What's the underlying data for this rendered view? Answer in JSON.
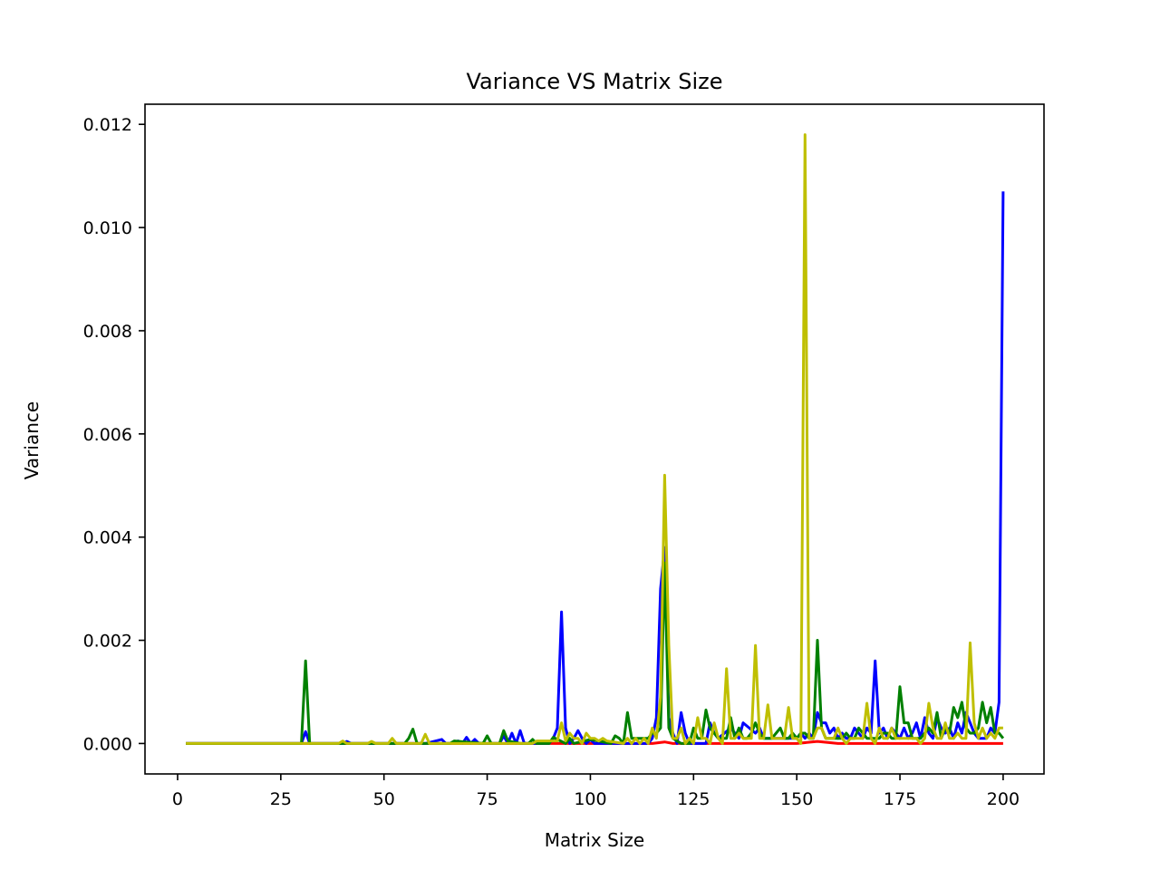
{
  "chart_data": {
    "type": "line",
    "title": "Variance VS Matrix Size",
    "xlabel": "Matrix Size",
    "ylabel": "Variance",
    "xlim": [
      -7.9,
      209.9
    ],
    "ylim": [
      -0.00059,
      0.01239
    ],
    "xticks": [
      0,
      25,
      50,
      75,
      100,
      125,
      150,
      175,
      200
    ],
    "yticks": [
      0.0,
      0.002,
      0.004,
      0.006,
      0.008,
      0.01,
      0.012
    ],
    "ytick_labels": [
      "0.000",
      "0.002",
      "0.004",
      "0.006",
      "0.008",
      "0.010",
      "0.012"
    ],
    "grid": false,
    "legend": "none",
    "series": [
      {
        "color": "#ff0000",
        "x": [
          2,
          50,
          100,
          110,
          115,
          118,
          120,
          130,
          140,
          150,
          155,
          160,
          170,
          180,
          190,
          200
        ],
        "y": [
          0,
          0,
          0,
          0,
          0,
          3e-05,
          0,
          0,
          0,
          0,
          4e-05,
          0,
          0,
          0,
          0,
          0
        ]
      },
      {
        "color": "#0000ff",
        "x": [
          2,
          29,
          30,
          31,
          32,
          33,
          40,
          41,
          42,
          60,
          64,
          65,
          66,
          68,
          69,
          70,
          71,
          72,
          73,
          74,
          78,
          79,
          80,
          81,
          82,
          83,
          84,
          85,
          90,
          91,
          92,
          93,
          94,
          95,
          96,
          97,
          98,
          99,
          100,
          101,
          102,
          110,
          114,
          115,
          116,
          117,
          118,
          119,
          120,
          121,
          122,
          123,
          124,
          128,
          129,
          130,
          131,
          134,
          135,
          136,
          137,
          140,
          141,
          142,
          145,
          150,
          151,
          152,
          153,
          154,
          155,
          156,
          157,
          158,
          159,
          160,
          161,
          162,
          163,
          164,
          165,
          166,
          167,
          168,
          169,
          170,
          171,
          172,
          173,
          174,
          175,
          176,
          177,
          178,
          179,
          180,
          181,
          182,
          183,
          184,
          185,
          186,
          187,
          188,
          189,
          190,
          191,
          192,
          193,
          194,
          195,
          196,
          197,
          198,
          199,
          200
        ],
        "y": [
          0,
          0,
          0,
          0.00023,
          0,
          0,
          0,
          4e-05,
          0,
          0,
          8e-05,
          0,
          0,
          5e-05,
          0,
          0.00012,
          0,
          8e-05,
          0,
          0,
          0,
          0.00015,
          0,
          0.0002,
          0,
          0.00025,
          0,
          0,
          0,
          0.0001,
          0.0003,
          0.00255,
          0.0003,
          0,
          0.0001,
          0.00025,
          0.0001,
          0,
          8e-05,
          0,
          0,
          0,
          0,
          0.0001,
          0.0005,
          0.003,
          0.0038,
          0.0005,
          0.0002,
          0,
          0.0006,
          0.0002,
          0,
          0,
          0.0004,
          0.0002,
          0.0001,
          0.0003,
          0.0002,
          0.0001,
          0.0004,
          0.0002,
          0.0003,
          0.0001,
          0.0001,
          0.0001,
          0.0002,
          0.0001,
          0.0002,
          0.0001,
          0.0006,
          0.0004,
          0.0004,
          0.0002,
          0.0003,
          0.0001,
          0.0002,
          0.0001,
          0.0001,
          0.0003,
          0.0002,
          0.0001,
          0.0003,
          0.0002,
          0.0016,
          0.0002,
          0.0003,
          0.0001,
          0.0003,
          0.0002,
          0.0001,
          0.0003,
          0.0001,
          0.0002,
          0.0004,
          0.0001,
          0.0005,
          0.0002,
          0.0001,
          0.0005,
          0.0003,
          0.0002,
          0.0003,
          0.0001,
          0.0004,
          0.0002,
          0.0006,
          0.0004,
          0.0002,
          0.0001,
          0.0001,
          0.0001,
          0.0003,
          0.0002,
          0.0008,
          0.0107
        ]
      },
      {
        "color": "#008000",
        "x": [
          2,
          29,
          30,
          31,
          32,
          33,
          52,
          55,
          56,
          57,
          58,
          59,
          66,
          67,
          74,
          75,
          76,
          78,
          79,
          80,
          83,
          85,
          86,
          87,
          90,
          91,
          94,
          95,
          96,
          100,
          105,
          106,
          107,
          108,
          109,
          110,
          111,
          112,
          113,
          114,
          115,
          116,
          117,
          118,
          119,
          120,
          122,
          124,
          125,
          126,
          127,
          128,
          129,
          130,
          131,
          132,
          133,
          134,
          135,
          136,
          137,
          138,
          139,
          140,
          141,
          142,
          143,
          144,
          145,
          146,
          147,
          148,
          149,
          150,
          151,
          152,
          153,
          154,
          155,
          156,
          157,
          158,
          159,
          160,
          161,
          162,
          163,
          164,
          165,
          166,
          167,
          168,
          169,
          170,
          171,
          172,
          173,
          174,
          175,
          176,
          177,
          178,
          179,
          180,
          181,
          182,
          183,
          184,
          185,
          186,
          187,
          188,
          189,
          190,
          191,
          192,
          193,
          194,
          195,
          196,
          197,
          198,
          199,
          200
        ],
        "y": [
          0,
          0,
          0,
          0.0016,
          0,
          0,
          0,
          0,
          0.0001,
          0.00028,
          0,
          0,
          0,
          5e-05,
          0,
          0.00015,
          0,
          0,
          0.00025,
          5e-05,
          0,
          0,
          8e-05,
          0,
          0,
          0.00012,
          0,
          0.0001,
          0,
          8e-05,
          0,
          0.00015,
          0.0001,
          0,
          0.0006,
          0.0001,
          0.0001,
          0.0001,
          0.0001,
          0.0001,
          0.0002,
          0.0002,
          0.0003,
          0.0035,
          0.0003,
          0.0001,
          0,
          0,
          0.0003,
          0.0001,
          0.0001,
          0.00065,
          0.0003,
          0.0002,
          0.0001,
          0.0001,
          0.0001,
          0.0005,
          0.0001,
          0.0003,
          0.0001,
          0.0001,
          0.0002,
          0.0004,
          0.0002,
          0.0001,
          0.0001,
          0.0001,
          0.0002,
          0.0003,
          0.0001,
          0.0001,
          0.0002,
          0.0001,
          0.0002,
          0.0002,
          0.0001,
          0.0001,
          0.002,
          0.0003,
          0.0001,
          0.0001,
          0.0001,
          0.0001,
          0.0001,
          0.0002,
          0.0001,
          0.0001,
          0.0003,
          0.0002,
          0.0001,
          0.0001,
          0.0001,
          0.0001,
          0.0002,
          0.0002,
          0.0001,
          0.0001,
          0.0011,
          0.0004,
          0.0004,
          0.0001,
          0.0001,
          0.0001,
          0.0002,
          0.0003,
          0.0002,
          0.0006,
          0.0001,
          0.0003,
          0.0002,
          0.0007,
          0.0005,
          0.0008,
          0.0003,
          0.0002,
          0.0002,
          0.0003,
          0.0008,
          0.0004,
          0.0007,
          0.0002,
          0.0002,
          0.0001
        ]
      },
      {
        "color": "#bfbf00",
        "x": [
          2,
          39,
          40,
          41,
          46,
          47,
          48,
          51,
          52,
          53,
          59,
          60,
          61,
          86,
          87,
          92,
          93,
          94,
          95,
          96,
          97,
          98,
          99,
          100,
          101,
          102,
          103,
          104,
          108,
          109,
          110,
          111,
          112,
          113,
          114,
          115,
          116,
          117,
          118,
          119,
          120,
          121,
          122,
          123,
          124,
          125,
          126,
          127,
          128,
          129,
          130,
          131,
          132,
          133,
          134,
          135,
          136,
          137,
          138,
          139,
          140,
          141,
          142,
          143,
          144,
          145,
          146,
          147,
          148,
          149,
          150,
          151,
          152,
          153,
          154,
          155,
          156,
          157,
          158,
          159,
          160,
          161,
          162,
          163,
          164,
          165,
          166,
          167,
          168,
          169,
          170,
          171,
          172,
          173,
          174,
          175,
          176,
          177,
          178,
          179,
          180,
          181,
          182,
          183,
          184,
          185,
          186,
          187,
          188,
          189,
          190,
          191,
          192,
          193,
          194,
          195,
          196,
          197,
          198,
          199,
          200
        ],
        "y": [
          0,
          0,
          5e-05,
          0,
          0,
          4e-05,
          0,
          0,
          0.0001,
          0,
          0,
          0.00018,
          0,
          0,
          5e-05,
          5e-05,
          0.0004,
          5e-05,
          0.0002,
          0.0001,
          0.0001,
          0,
          0.0002,
          0.0001,
          0.0001,
          5e-05,
          0.0001,
          5e-05,
          0,
          0.0001,
          0,
          0.0001,
          0,
          0.0001,
          0,
          0.0003,
          0.0001,
          0.0009,
          0.0052,
          0.0019,
          0.0001,
          0.0001,
          0.0003,
          0,
          0.0001,
          0,
          0.0005,
          0.0001,
          0.0001,
          0,
          0.0004,
          0.0001,
          0,
          0.00145,
          0.0001,
          0.0001,
          0.0002,
          0.0001,
          0.0001,
          0.0001,
          0.0019,
          0.0001,
          0.0001,
          0.00075,
          0.0001,
          0.0001,
          0.0001,
          0.0001,
          0.0007,
          0.0001,
          0.0001,
          0,
          0.0118,
          0.0001,
          0.0001,
          0.0003,
          0.0003,
          0.0001,
          0.0001,
          0.0001,
          0.0003,
          0.0001,
          0,
          0.0001,
          0.0001,
          0.0001,
          0.0001,
          0.00078,
          0.0001,
          0,
          0.0003,
          0.0001,
          0.0001,
          0.0003,
          0.0001,
          0.0001,
          0.0001,
          0.0001,
          0.0001,
          0.0001,
          0,
          0.0001,
          0.00078,
          0.0003,
          0.0001,
          0.0001,
          0.0004,
          0.0001,
          0.0001,
          0.0002,
          0.0001,
          0.0001,
          0.00195,
          0.0004,
          0.0001,
          0.0003,
          0.0001,
          0.0002,
          0.0001,
          0.0003,
          0.0003
        ]
      }
    ]
  }
}
